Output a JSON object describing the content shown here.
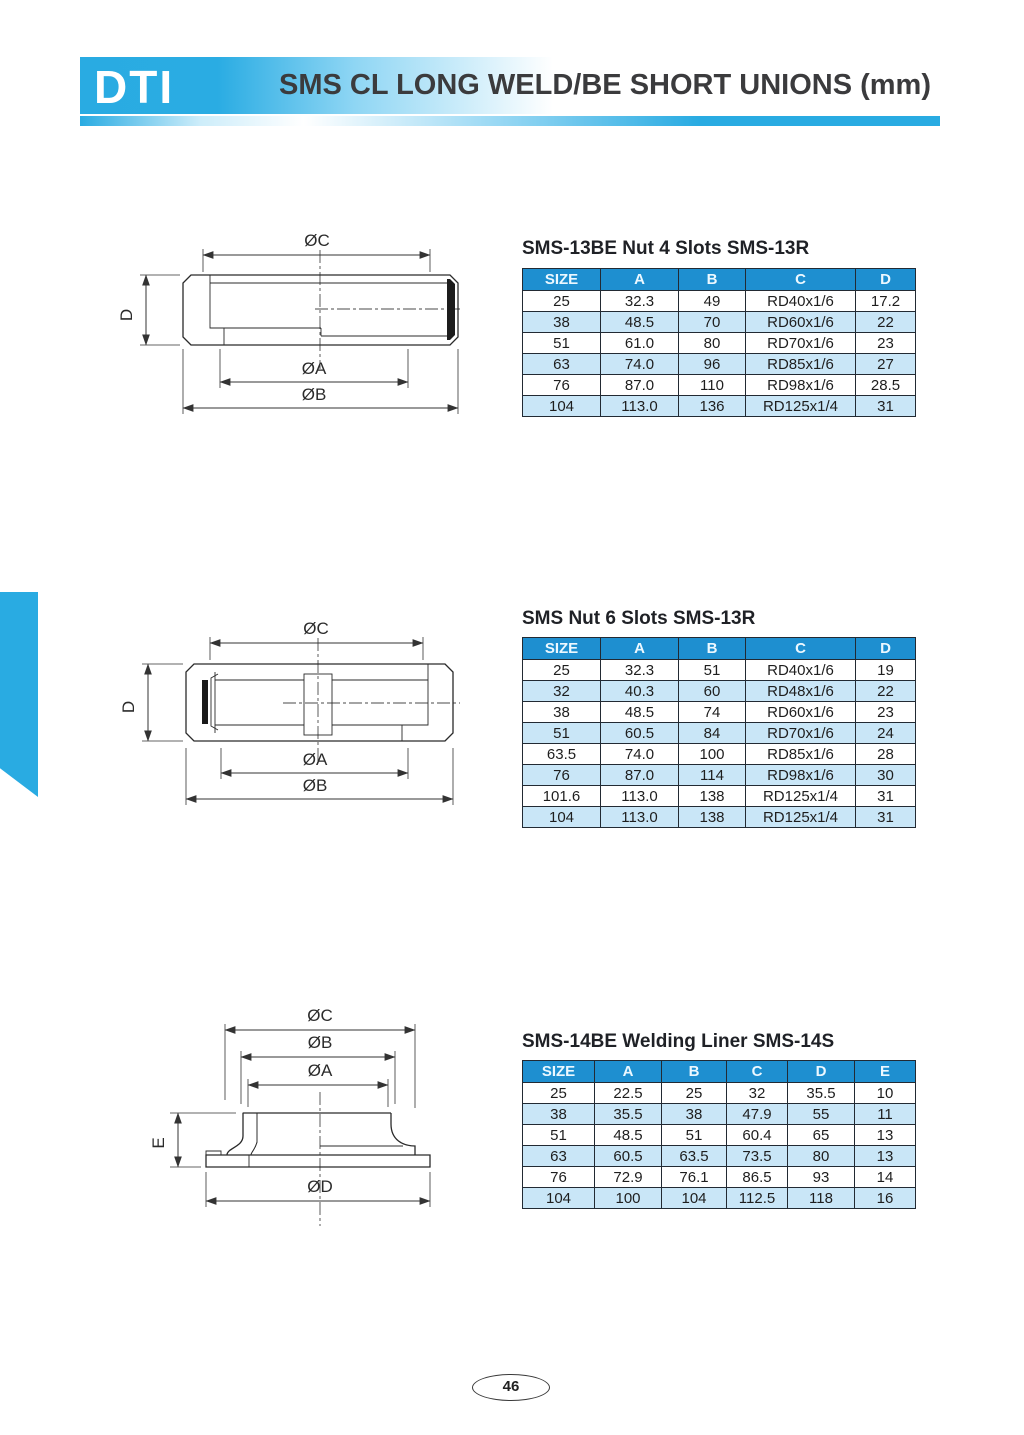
{
  "page": {
    "logo": "DTI",
    "title": "SMS CL LONG WELD/BE SHORT UNIONS (mm)",
    "page_number": "46"
  },
  "colors": {
    "accent": "#29ABE2",
    "table_header_bg": "#1E8FD0",
    "table_row_alt": "#C9E6F7",
    "title_text": "#3B3B3D"
  },
  "sections": [
    {
      "title": "SMS-13BE Nut 4 Slots SMS-13R",
      "columns": [
        "SIZE",
        "A",
        "B",
        "C",
        "D"
      ],
      "rows": [
        [
          "25",
          "32.3",
          "49",
          "RD40x1/6",
          "17.2"
        ],
        [
          "38",
          "48.5",
          "70",
          "RD60x1/6",
          "22"
        ],
        [
          "51",
          "61.0",
          "80",
          "RD70x1/6",
          "23"
        ],
        [
          "63",
          "74.0",
          "96",
          "RD85x1/6",
          "27"
        ],
        [
          "76",
          "87.0",
          "110",
          "RD98x1/6",
          "28.5"
        ],
        [
          "104",
          "113.0",
          "136",
          "RD125x1/4",
          "31"
        ]
      ],
      "drawing": {
        "dim_c": "ØC",
        "dim_d": "D",
        "dim_a": "ØA",
        "dim_b": "ØB"
      }
    },
    {
      "title": "SMS Nut 6 Slots SMS-13R",
      "columns": [
        "SIZE",
        "A",
        "B",
        "C",
        "D"
      ],
      "rows": [
        [
          "25",
          "32.3",
          "51",
          "RD40x1/6",
          "19"
        ],
        [
          "32",
          "40.3",
          "60",
          "RD48x1/6",
          "22"
        ],
        [
          "38",
          "48.5",
          "74",
          "RD60x1/6",
          "23"
        ],
        [
          "51",
          "60.5",
          "84",
          "RD70x1/6",
          "24"
        ],
        [
          "63.5",
          "74.0",
          "100",
          "RD85x1/6",
          "28"
        ],
        [
          "76",
          "87.0",
          "114",
          "RD98x1/6",
          "30"
        ],
        [
          "101.6",
          "113.0",
          "138",
          "RD125x1/4",
          "31"
        ],
        [
          "104",
          "113.0",
          "138",
          "RD125x1/4",
          "31"
        ]
      ],
      "drawing": {
        "dim_c": "ØC",
        "dim_d": "D",
        "dim_a": "ØA",
        "dim_b": "ØB"
      }
    },
    {
      "title": "SMS-14BE Welding Liner SMS-14S",
      "columns": [
        "SIZE",
        "A",
        "B",
        "C",
        "D",
        "E"
      ],
      "rows": [
        [
          "25",
          "22.5",
          "25",
          "32",
          "35.5",
          "10"
        ],
        [
          "38",
          "35.5",
          "38",
          "47.9",
          "55",
          "11"
        ],
        [
          "51",
          "48.5",
          "51",
          "60.4",
          "65",
          "13"
        ],
        [
          "63",
          "60.5",
          "63.5",
          "73.5",
          "80",
          "13"
        ],
        [
          "76",
          "72.9",
          "76.1",
          "86.5",
          "93",
          "14"
        ],
        [
          "104",
          "100",
          "104",
          "112.5",
          "118",
          "16"
        ]
      ],
      "drawing": {
        "dim_c": "ØC",
        "dim_b": "ØB",
        "dim_a": "ØA",
        "dim_e": "E",
        "dim_d": "ØD"
      }
    }
  ]
}
